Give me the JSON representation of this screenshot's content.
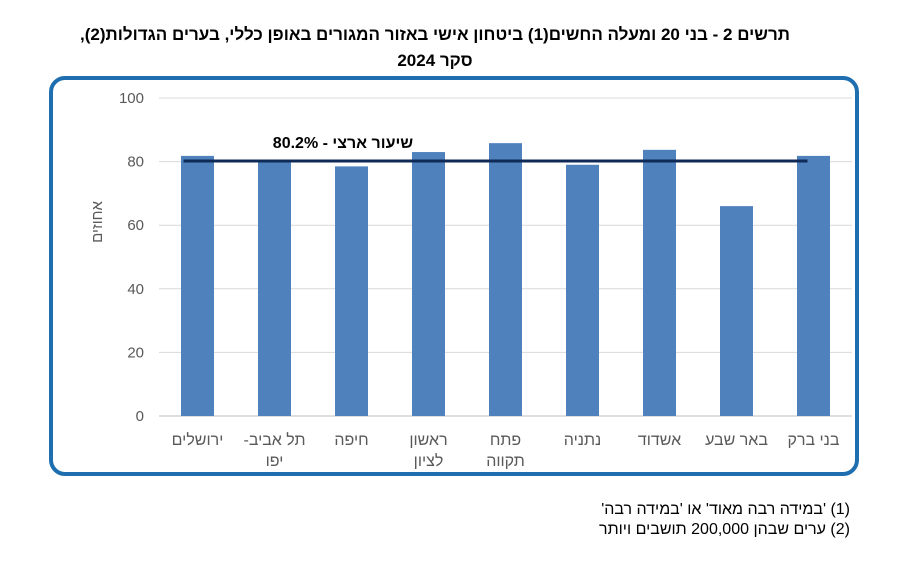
{
  "chart_data": {
    "type": "bar",
    "title_line1": "תרשים 2 - בני 20 ומעלה החשים(1) ביטחון אישי באזור המגורים באופן כללי, בערים הגדולות(2),",
    "title_line2": "סקר 2024",
    "ylabel": "אחוזים",
    "ylim": [
      0,
      100
    ],
    "yticks": [
      0,
      20,
      40,
      60,
      80,
      100
    ],
    "categories": [
      [
        "ירושלים"
      ],
      [
        "תל אביב-",
        "יפו"
      ],
      [
        "חיפה"
      ],
      [
        "ראשון",
        "לציון"
      ],
      [
        "פתח",
        "תקווה"
      ],
      [
        "נתניה"
      ],
      [
        "אשדוד"
      ],
      [
        "באר שבע"
      ],
      [
        "בני ברק"
      ]
    ],
    "values": [
      81.8,
      80.5,
      78.5,
      83.0,
      85.8,
      79.0,
      83.7,
      66.0,
      81.8
    ],
    "reference_line": {
      "value": 80.2,
      "label": "שיעור ארצי - 80.2%"
    },
    "bar_color": "#4f81bd",
    "reference_color": "#0f2a57",
    "frame_color": "#1f6fb0",
    "grid": true
  },
  "footnotes": [
    "(1) 'במידה רבה מאוד' או 'במידה רבה'",
    "(2) ערים שבהן 200,000 תושבים ויותר"
  ]
}
